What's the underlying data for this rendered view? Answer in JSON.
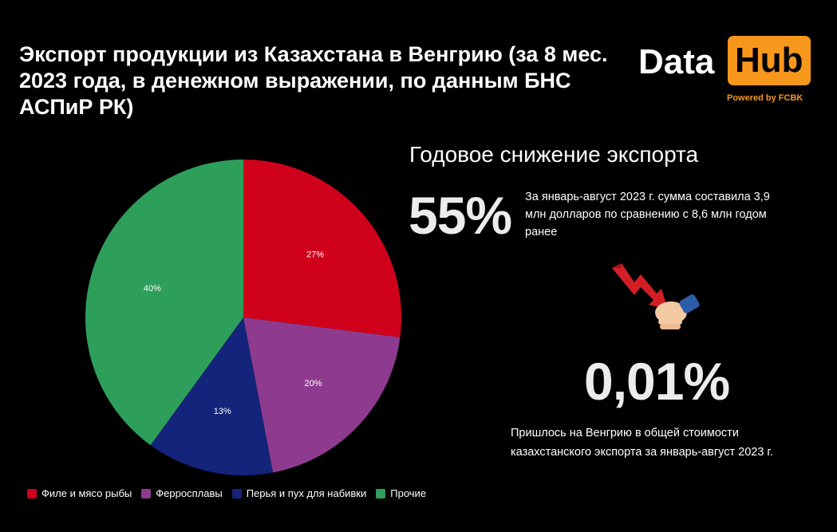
{
  "title": "Экспорт продукции из Казахстана в Венгрию (за 8 мес. 2023 года, в денежном выражении, по данным БНС АСПиР РК)",
  "logo": {
    "data": "Data",
    "hub": "Hub",
    "powered": "Powered by FCBK",
    "accent": "#f7971c"
  },
  "chart_data": {
    "type": "pie",
    "title": "",
    "legend_position": "bottom",
    "categories": [
      "Филе и мясо рыбы",
      "Ферросплавы",
      "Перья и пух для набивки",
      "Прочие"
    ],
    "values": [
      27,
      20,
      13,
      40
    ],
    "labels": [
      "27%",
      "20%",
      "13%",
      "40%"
    ],
    "colors": [
      "#d0021b",
      "#8e3b8f",
      "#14247a",
      "#2e9e5b"
    ]
  },
  "stats": {
    "heading": "Годовое снижение экспорта",
    "decline_value": "55%",
    "decline_text": "За январь-август 2023 г. сумма составила 3,9 млн долларов по сравнению с 8,6 млн годом ранее",
    "share_value": "0,01%",
    "share_text": "Пришлось на Венгрию в общей стоимости казахстанского экспорта за январь-август 2023 г."
  },
  "icons": {
    "decline": "downtrend-arrow-hand-icon"
  }
}
